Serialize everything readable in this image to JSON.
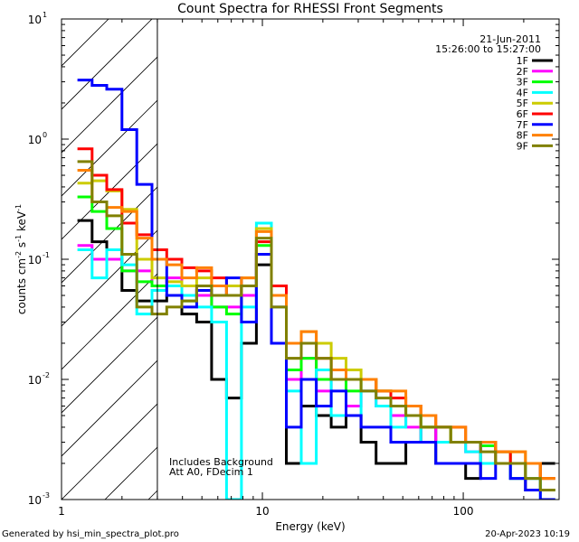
{
  "chart_data": {
    "type": "line",
    "title": "Count Spectra for RHESSI Front Segments",
    "xlabel": "Energy (keV)",
    "ylabel_parts": [
      "counts cm",
      "-2",
      " s",
      "-1",
      " keV",
      "-1"
    ],
    "xscale": "log",
    "yscale": "log",
    "xlim": [
      1,
      300
    ],
    "ylim": [
      0.001,
      10
    ],
    "x_ticks": [
      {
        "value": 1,
        "label": "1"
      },
      {
        "value": 10,
        "label": "10"
      },
      {
        "value": 100,
        "label": "100"
      }
    ],
    "y_ticks": [
      {
        "value": 0.001,
        "base": "10",
        "exp": "-3"
      },
      {
        "value": 0.01,
        "base": "10",
        "exp": "-2"
      },
      {
        "value": 0.1,
        "base": "10",
        "exp": "-1"
      },
      {
        "value": 1,
        "base": "10",
        "exp": "0"
      },
      {
        "value": 10,
        "base": "10",
        "exp": "1"
      }
    ],
    "date": "21-Jun-2011",
    "time_range": "15:26:00 to 15:27:00",
    "excluded_region_keV": [
      1,
      3
    ],
    "annotation_lines": [
      "Includes Background",
      "Att A0, FDecim 1"
    ],
    "legend_position": "top-right",
    "energy_edges": [
      1.2,
      1.42,
      1.68,
      2.0,
      2.37,
      2.82,
      3.34,
      3.97,
      4.71,
      5.59,
      6.63,
      7.87,
      9.34,
      11.09,
      13.16,
      15.62,
      18.54,
      22.0,
      26.1,
      31.0,
      36.8,
      43.6,
      51.8,
      61.5,
      73.0,
      86.6,
      102.8,
      122.0,
      144.8,
      171.8,
      204.0,
      242.0,
      287.0
    ],
    "series": [
      {
        "name": "1F",
        "color": "#000000",
        "values": [
          0.21,
          0.14,
          0.1,
          0.055,
          0.045,
          0.045,
          0.05,
          0.035,
          0.03,
          0.01,
          0.007,
          0.02,
          0.09,
          0.02,
          0.002,
          0.006,
          0.005,
          0.004,
          0.005,
          0.003,
          0.002,
          0.002,
          0.003,
          0.004,
          0.002,
          0.002,
          0.0015,
          0.003,
          0.002,
          0.0015,
          0.0012,
          0.002
        ]
      },
      {
        "name": "2F",
        "color": "#ff00ff",
        "values": [
          0.13,
          0.1,
          0.1,
          0.08,
          0.08,
          0.06,
          0.07,
          0.06,
          0.05,
          0.04,
          0.04,
          0.05,
          0.11,
          0.04,
          0.01,
          0.015,
          0.008,
          0.012,
          0.006,
          0.008,
          0.006,
          0.005,
          0.004,
          0.003,
          0.004,
          0.003,
          0.0025,
          0.003,
          0.002,
          0.002,
          0.0015,
          0.0012
        ]
      },
      {
        "name": "3F",
        "color": "#00ff00",
        "values": [
          0.33,
          0.25,
          0.18,
          0.08,
          0.065,
          0.06,
          0.06,
          0.045,
          0.055,
          0.04,
          0.035,
          0.06,
          0.13,
          0.05,
          0.012,
          0.015,
          0.01,
          0.01,
          0.008,
          0.01,
          0.008,
          0.006,
          0.005,
          0.004,
          0.004,
          0.003,
          0.003,
          0.0028,
          0.0025,
          0.002,
          0.0015,
          0.0012
        ]
      },
      {
        "name": "4F",
        "color": "#00ffff",
        "values": [
          0.12,
          0.07,
          0.12,
          0.09,
          0.035,
          0.055,
          0.06,
          0.05,
          0.04,
          0.03,
          0.001,
          0.04,
          0.2,
          0.04,
          0.008,
          0.002,
          0.012,
          0.005,
          0.005,
          0.008,
          0.006,
          0.004,
          0.005,
          0.003,
          0.003,
          0.003,
          0.0025,
          0.002,
          0.002,
          0.0015,
          0.0015,
          0.001
        ]
      },
      {
        "name": "5F",
        "color": "#cccc00",
        "values": [
          0.43,
          0.45,
          0.37,
          0.26,
          0.1,
          0.07,
          0.065,
          0.06,
          0.07,
          0.05,
          0.06,
          0.07,
          0.18,
          0.05,
          0.015,
          0.025,
          0.02,
          0.015,
          0.012,
          0.01,
          0.008,
          0.006,
          0.006,
          0.004,
          0.004,
          0.003,
          0.003,
          0.003,
          0.002,
          0.0025,
          0.002,
          0.0015
        ]
      },
      {
        "name": "6F",
        "color": "#ff0000",
        "values": [
          0.83,
          0.5,
          0.38,
          0.2,
          0.16,
          0.12,
          0.1,
          0.085,
          0.08,
          0.07,
          0.05,
          0.06,
          0.14,
          0.06,
          0.02,
          0.02,
          0.015,
          0.01,
          0.01,
          0.01,
          0.008,
          0.007,
          0.006,
          0.005,
          0.004,
          0.004,
          0.003,
          0.003,
          0.0025,
          0.002,
          0.002,
          0.0015
        ]
      },
      {
        "name": "7F",
        "color": "#0000ff",
        "values": [
          3.1,
          2.8,
          2.6,
          1.2,
          0.42,
          0.1,
          0.05,
          0.04,
          0.055,
          0.05,
          0.07,
          0.03,
          0.11,
          0.02,
          0.004,
          0.01,
          0.006,
          0.008,
          0.005,
          0.004,
          0.004,
          0.003,
          0.003,
          0.003,
          0.002,
          0.002,
          0.002,
          0.0015,
          0.002,
          0.0015,
          0.0012,
          0.001
        ]
      },
      {
        "name": "8F",
        "color": "#ff8000",
        "values": [
          0.55,
          0.3,
          0.27,
          0.25,
          0.15,
          0.1,
          0.09,
          0.07,
          0.085,
          0.06,
          0.05,
          0.07,
          0.17,
          0.05,
          0.02,
          0.025,
          0.015,
          0.012,
          0.01,
          0.01,
          0.008,
          0.008,
          0.006,
          0.005,
          0.004,
          0.004,
          0.003,
          0.003,
          0.0025,
          0.0025,
          0.002,
          0.0015
        ]
      },
      {
        "name": "9F",
        "color": "#808000",
        "values": [
          0.65,
          0.3,
          0.23,
          0.11,
          0.04,
          0.035,
          0.04,
          0.045,
          0.06,
          0.05,
          0.05,
          0.06,
          0.15,
          0.04,
          0.015,
          0.02,
          0.015,
          0.01,
          0.01,
          0.008,
          0.007,
          0.006,
          0.005,
          0.004,
          0.004,
          0.003,
          0.003,
          0.0025,
          0.002,
          0.002,
          0.0015,
          0.0012
        ]
      }
    ]
  },
  "footer": {
    "generated_by": "Generated by hsi_min_spectra_plot.pro",
    "timestamp": "20-Apr-2023 10:19"
  }
}
